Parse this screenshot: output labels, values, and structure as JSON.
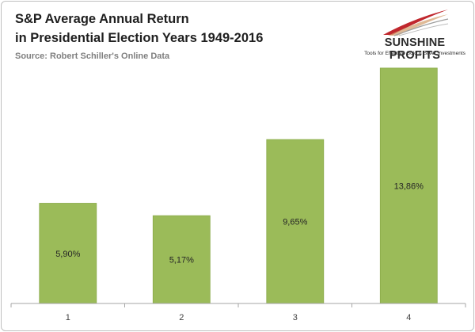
{
  "header": {
    "title_line1": "S&P Average Annual Return",
    "title_line2": "in Presidential Election Years 1949-2016",
    "source": "Source: Robert Schiller's Online Data"
  },
  "logo": {
    "name": "SUNSHINE PROFITS",
    "tagline": "Tools for Effective Gold & Silver Investments"
  },
  "colors": {
    "bar": "#9bbb59",
    "bar_stroke": "#8aab4a",
    "axis": "#a6a6a6",
    "logo_red": "#c0272d"
  },
  "chart_data": {
    "type": "bar",
    "title": "S&P Average Annual Return in Presidential Election Years 1949-2016",
    "xlabel": "",
    "ylabel": "",
    "categories": [
      "1",
      "2",
      "3",
      "4"
    ],
    "values": [
      5.9,
      5.17,
      9.65,
      13.86
    ],
    "data_labels": [
      "5,90%",
      "5,17%",
      "9,65%",
      "13,86%"
    ],
    "ylim": [
      0,
      16
    ],
    "grid": false,
    "legend": "none"
  }
}
